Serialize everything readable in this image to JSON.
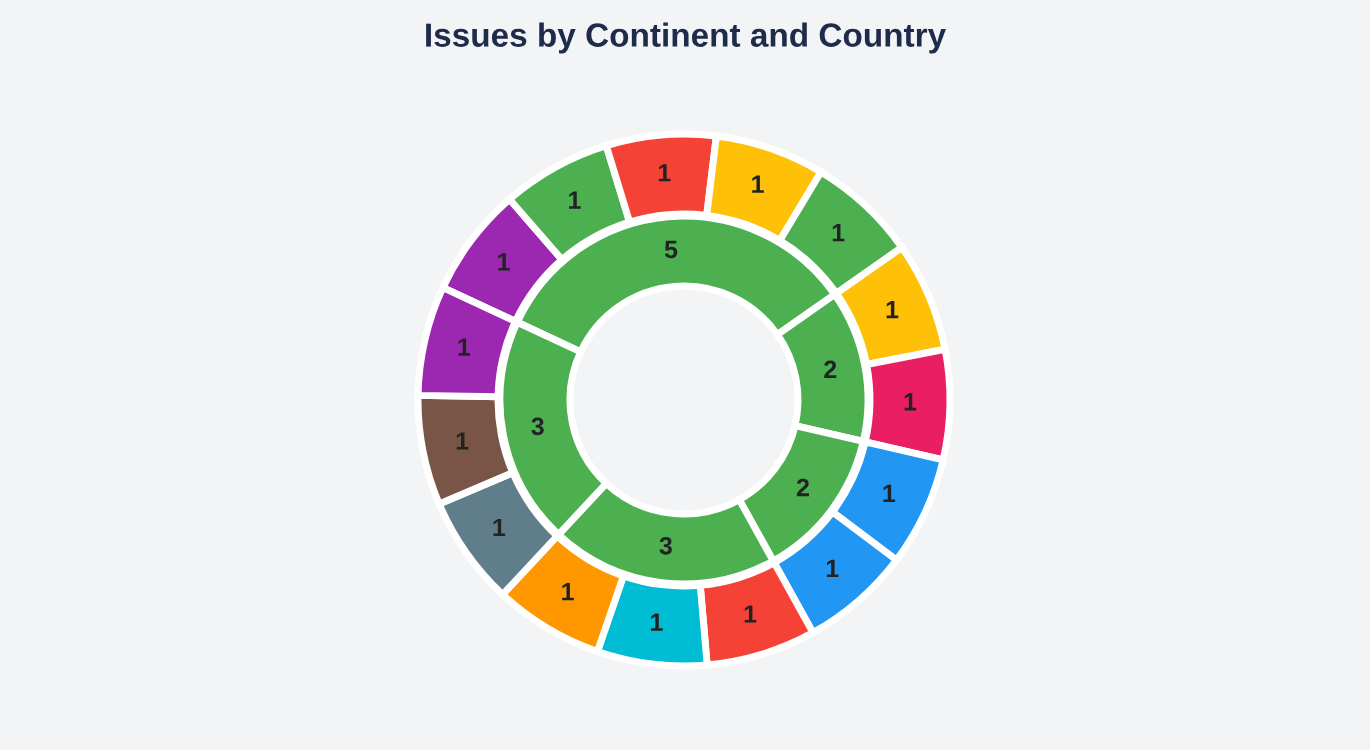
{
  "chart_data": {
    "type": "donut",
    "title": "Issues by Continent and Country",
    "data_labels": true,
    "series": [
      {
        "values": [
          5,
          2,
          2,
          3,
          3
        ],
        "colors": [
          "#4caf50",
          "#4caf50",
          "#4caf50",
          "#4caf50",
          "#4caf50"
        ]
      },
      {
        "values": [
          1,
          1,
          1,
          1,
          1,
          1,
          1,
          1,
          1,
          1,
          1,
          1,
          1,
          1,
          1
        ],
        "colors": [
          "#9c27b0",
          "#4caf50",
          "#f44336",
          "#ffc107",
          "#4caf50",
          "#ffc107",
          "#e91e63",
          "#2196f3",
          "#2196f3",
          "#f44336",
          "#00bcd4",
          "#ff9800",
          "#607d8b",
          "#795548",
          "#9c27b0"
        ]
      }
    ]
  }
}
